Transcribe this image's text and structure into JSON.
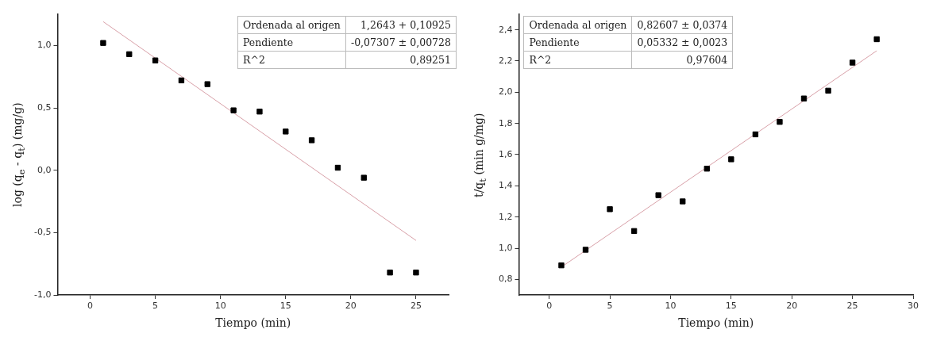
{
  "chart_data": [
    {
      "type": "scatter",
      "xlabel": "Tiempo (min)",
      "ylabel": "log (q$_{e}$ - q$_{t}$) (mg/g)",
      "xlim": [
        -2.5,
        27.5
      ],
      "xticks": [
        0,
        5,
        10,
        15,
        20,
        25
      ],
      "ylim": [
        -1.0,
        1.25
      ],
      "yticks": [
        {
          "value": -1,
          "label": "-1,0"
        },
        {
          "value": -0.5,
          "label": "-0,5"
        },
        {
          "value": 0,
          "label": "0,0"
        },
        {
          "value": 0.5,
          "label": "0,5"
        },
        {
          "value": 1,
          "label": "1,0"
        }
      ],
      "grid": false,
      "legend": false,
      "marker": "square",
      "annotations": [
        "Ordenada al origen",
        "1,2643 + 0,10925",
        "Pendiente",
        "-0,07307 ± 0,00728",
        "R^2",
        "0,89251"
      ],
      "series": [
        {
          "color": "#000000",
          "x": [
            1,
            3,
            5,
            7,
            9,
            11,
            13,
            15,
            17,
            19,
            21,
            23,
            25
          ],
          "values": [
            1.02,
            0.93,
            0.88,
            0.72,
            0.69,
            0.48,
            0.47,
            0.31,
            0.24,
            0.02,
            -0.06,
            -0.82,
            -0.82
          ]
        },
        {
          "type": "line",
          "color": "#d8a0a8",
          "marker": "none",
          "x": [
            1,
            25
          ],
          "values": [
            1.191,
            -0.563
          ]
        }
      ]
    },
    {
      "type": "scatter",
      "xlabel": "Tiempo (min)",
      "ylabel": "t/q$_{t}$ (min g/mg)",
      "xlim": [
        -2.5,
        30
      ],
      "xticks": [
        0,
        5,
        10,
        15,
        20,
        25,
        30
      ],
      "ylim": [
        0.7,
        2.5
      ],
      "yticks": [
        {
          "value": 0.8,
          "label": "0,8"
        },
        {
          "value": 1.0,
          "label": "1,0"
        },
        {
          "value": 1.2,
          "label": "1,2"
        },
        {
          "value": 1.4,
          "label": "1,4"
        },
        {
          "value": 1.6,
          "label": "1,6"
        },
        {
          "value": 1.8,
          "label": "1,8"
        },
        {
          "value": 2.0,
          "label": "2,0"
        },
        {
          "value": 2.2,
          "label": "2,2"
        },
        {
          "value": 2.4,
          "label": "2,4"
        }
      ],
      "grid": false,
      "legend": false,
      "marker": "square",
      "annotations": [
        "Ordenada al origen",
        "0,82607 ± 0,0374",
        "Pendiente",
        "0,05332 ± 0,0023",
        "R^2",
        "0,97604"
      ],
      "series": [
        {
          "color": "#000000",
          "x": [
            1,
            3,
            5,
            7,
            9,
            11,
            13,
            15,
            17,
            19,
            21,
            23,
            25,
            27
          ],
          "values": [
            0.89,
            0.99,
            1.25,
            1.11,
            1.34,
            1.3,
            1.51,
            1.57,
            1.73,
            1.81,
            1.96,
            2.01,
            2.19,
            2.34
          ]
        },
        {
          "type": "line",
          "color": "#d8a0a8",
          "marker": "none",
          "x": [
            1,
            27
          ],
          "values": [
            0.879,
            2.266
          ]
        }
      ]
    }
  ]
}
